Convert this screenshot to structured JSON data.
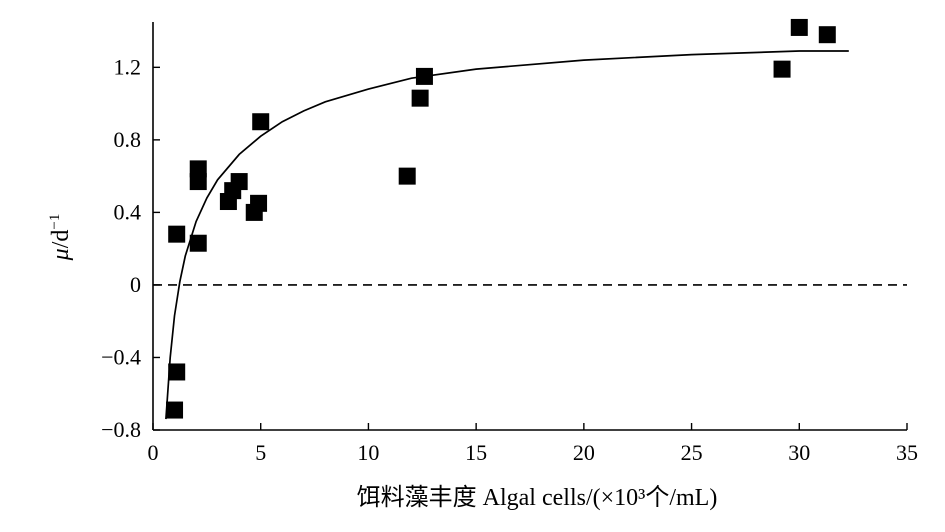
{
  "chart_data": {
    "type": "scatter",
    "title": "",
    "xlabel": "饵料藻丰度 Algal cells/(×10³个/mL)",
    "ylabel": {
      "symbol": "μ",
      "unit": "/d",
      "exponent": "−1"
    },
    "xlim": [
      0,
      35
    ],
    "ylim": [
      -0.8,
      1.45
    ],
    "xticks": [
      0,
      5,
      10,
      15,
      20,
      25,
      30,
      35
    ],
    "xtick_labels": [
      "0",
      "5",
      "10",
      "15",
      "20",
      "25",
      "30",
      "35"
    ],
    "yticks": [
      -0.8,
      -0.4,
      0,
      0.4,
      0.8,
      1.2
    ],
    "ytick_labels": [
      "−0.8",
      "−0.4",
      "0",
      "0.4",
      "0.8",
      "1.2"
    ],
    "grid": false,
    "reference_line": {
      "y": 0,
      "style": "dashed"
    },
    "points": [
      {
        "x": 1.0,
        "y": -0.69
      },
      {
        "x": 1.1,
        "y": -0.48
      },
      {
        "x": 1.1,
        "y": 0.28
      },
      {
        "x": 2.1,
        "y": 0.23
      },
      {
        "x": 2.1,
        "y": 0.57
      },
      {
        "x": 2.1,
        "y": 0.64
      },
      {
        "x": 3.5,
        "y": 0.46
      },
      {
        "x": 3.7,
        "y": 0.52
      },
      {
        "x": 4.0,
        "y": 0.57
      },
      {
        "x": 4.7,
        "y": 0.4
      },
      {
        "x": 4.9,
        "y": 0.45
      },
      {
        "x": 5.0,
        "y": 0.9
      },
      {
        "x": 11.8,
        "y": 0.6
      },
      {
        "x": 12.4,
        "y": 1.03
      },
      {
        "x": 12.6,
        "y": 1.15
      },
      {
        "x": 29.2,
        "y": 1.19
      },
      {
        "x": 30.0,
        "y": 1.42
      },
      {
        "x": 31.3,
        "y": 1.38
      }
    ],
    "fit_curve": {
      "x": [
        0.6,
        0.8,
        1.0,
        1.25,
        1.5,
        2.0,
        2.5,
        3.0,
        4.0,
        5.0,
        6.0,
        7.0,
        8.0,
        10.0,
        12.0,
        15.0,
        20.0,
        25.0,
        30.0,
        32.3
      ],
      "y": [
        -0.74,
        -0.4,
        -0.17,
        0.02,
        0.16,
        0.35,
        0.48,
        0.58,
        0.72,
        0.82,
        0.9,
        0.96,
        1.01,
        1.08,
        1.14,
        1.19,
        1.24,
        1.27,
        1.29,
        1.29
      ]
    }
  }
}
